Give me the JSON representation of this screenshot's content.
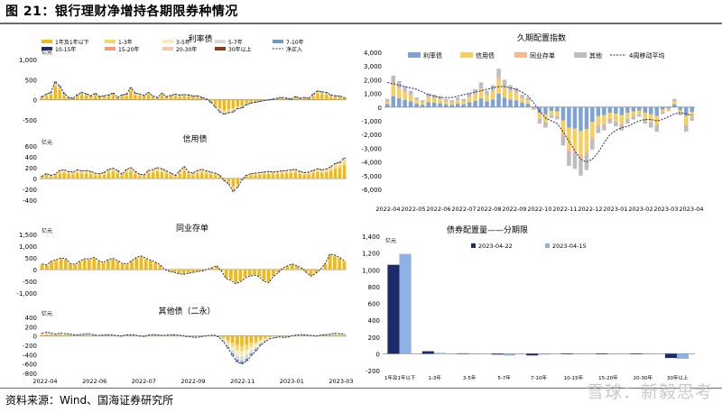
{
  "title": "图 21：银行理财净增持各期限券种情况",
  "source": "资料来源：Wind、国海证券研究所",
  "watermark": "雪球：新毅思考",
  "colors": {
    "b1": "#f2b817",
    "b2": "#f6d66a",
    "b3": "#fbeabb",
    "b4": "#d9d9d9",
    "b5": "#6f97c9",
    "b6": "#1d2b6b",
    "b7": "#f29b7a",
    "b8": "#f7c6a6",
    "b9": "#8c3a16",
    "net": "#1d2b6b",
    "rate": "#7ea2d6",
    "credit": "#f6cf5c",
    "ncd": "#f5b98e",
    "other": "#bdbdbd",
    "ma": "#1d2b6b",
    "d1": "#1d2b6b",
    "d2": "#8fb1e3"
  },
  "chart_data": [
    {
      "type": "bar",
      "title": "利率债",
      "unit": "亿元",
      "ylim": [
        -500,
        1000
      ],
      "yticks": [
        "1,000",
        "500",
        "0",
        "-500"
      ],
      "xticks": [
        "2022-04",
        "2022-06",
        "2022-07",
        "2022-09",
        "2022-11",
        "2023-01",
        "2023-03"
      ],
      "legend": [
        "1年及1年以下",
        "1-3年",
        "3-5年",
        "5-7年",
        "7-10年",
        "10-15年",
        "15-20年",
        "20-30年",
        "30年以上",
        "净买入"
      ],
      "net_approx": [
        80,
        140,
        180,
        450,
        340,
        160,
        60,
        40,
        130,
        180,
        150,
        100,
        160,
        80,
        100,
        120,
        170,
        60,
        120,
        140,
        300,
        170,
        140,
        110,
        180,
        90,
        60,
        160,
        80,
        110,
        140,
        120,
        130,
        120,
        90,
        100,
        60,
        20,
        -60,
        -180,
        -300,
        -360,
        -320,
        -300,
        -220,
        -200,
        -120,
        -80,
        -60,
        -40,
        -20,
        0,
        20,
        40,
        60,
        40,
        20,
        80,
        40,
        60,
        40,
        140,
        220,
        200,
        180,
        120,
        100,
        90,
        60
      ]
    },
    {
      "type": "bar",
      "title": "信用债",
      "unit": "亿元",
      "ylim": [
        -400,
        600
      ],
      "yticks": [
        "600",
        "400",
        "200",
        "0",
        "-200",
        "-400"
      ],
      "net_approx": [
        40,
        90,
        60,
        80,
        150,
        160,
        130,
        120,
        160,
        140,
        150,
        130,
        100,
        90,
        110,
        170,
        190,
        150,
        80,
        170,
        200,
        130,
        80,
        70,
        150,
        170,
        200,
        180,
        140,
        100,
        60,
        140,
        220,
        120,
        100,
        150,
        170,
        140,
        120,
        100,
        60,
        -40,
        -100,
        -240,
        -160,
        -20,
        60,
        90,
        100,
        110,
        120,
        130,
        120,
        130,
        140,
        150,
        160,
        170,
        130,
        110,
        120,
        150,
        180,
        160,
        180,
        220,
        280,
        300,
        380
      ]
    },
    {
      "type": "bar",
      "title": "同业存单",
      "unit": "亿元",
      "ylim": [
        -1000,
        1500
      ],
      "yticks": [
        "1,500",
        "1,000",
        "500",
        "0",
        "-500",
        "-1,000"
      ],
      "net_approx": [
        240,
        200,
        360,
        420,
        500,
        460,
        260,
        220,
        360,
        460,
        450,
        520,
        380,
        300,
        420,
        480,
        380,
        260,
        240,
        380,
        520,
        580,
        480,
        400,
        320,
        200,
        0,
        -80,
        -120,
        -180,
        -200,
        -160,
        -120,
        -80,
        -60,
        20,
        80,
        160,
        -60,
        -380,
        -460,
        -600,
        -520,
        -360,
        -280,
        -240,
        -300,
        -500,
        -560,
        -300,
        -140,
        60,
        160,
        240,
        160,
        60,
        -120,
        -280,
        -160,
        20,
        260,
        660,
        620,
        520,
        380
      ]
    },
    {
      "type": "bar",
      "title": "其他债（二永）",
      "unit": "亿元",
      "ylim": [
        -800,
        400
      ],
      "yticks": [
        "400",
        "200",
        "0",
        "-200",
        "-400",
        "-600",
        "-800"
      ],
      "net_approx": [
        60,
        80,
        60,
        40,
        60,
        50,
        40,
        20,
        30,
        40,
        50,
        30,
        10,
        20,
        30,
        20,
        10,
        0,
        20,
        30,
        20,
        0,
        -10,
        20,
        30,
        20,
        10,
        20,
        30,
        20,
        10,
        -10,
        -20,
        -30,
        -20,
        0,
        10,
        20,
        -20,
        -120,
        -260,
        -420,
        -560,
        -600,
        -540,
        -420,
        -320,
        -200,
        -120,
        -60,
        -40,
        -20,
        -30,
        -20,
        10,
        20,
        30,
        20,
        10,
        0,
        20,
        30,
        40,
        60,
        50,
        40
      ]
    },
    {
      "type": "bar",
      "title": "久期配置指数",
      "ylim": [
        -6000,
        4000
      ],
      "yticks": [
        "4,000",
        "3,000",
        "2,000",
        "1,000",
        "0",
        "-1,000",
        "-2,000",
        "-3,000",
        "-4,000",
        "-5,000",
        "-6,000"
      ],
      "xticks": [
        "2022-04",
        "2022-05",
        "2022-06",
        "2022-07",
        "2022-08",
        "2022-09",
        "2022-10",
        "2022-11",
        "2022-12",
        "2023-01",
        "2023-02",
        "2023-03",
        "2023-04"
      ],
      "legend": [
        "利率债",
        "信用债",
        "同业存单",
        "其他",
        "4周移动平均"
      ],
      "total_approx": [
        600,
        2300,
        1900,
        1500,
        1200,
        700,
        500,
        1000,
        900,
        800,
        600,
        500,
        700,
        600,
        1000,
        1300,
        1800,
        1200,
        1600,
        2800,
        2000,
        1600,
        1400,
        900,
        700,
        -200,
        -1200,
        -1500,
        -800,
        -900,
        -2800,
        -4300,
        -4500,
        -5000,
        -4600,
        -3100,
        -1900,
        -1700,
        -1200,
        -1400,
        -1700,
        -1200,
        -900,
        -700,
        -1200,
        -1500,
        -1800,
        -500,
        -300,
        600,
        -600,
        -1800,
        -1000
      ],
      "ma4_approx": [
        1800,
        1700,
        1600,
        1500,
        1400,
        1300,
        1100,
        900,
        800,
        700,
        700,
        700,
        800,
        900,
        1000,
        1100,
        1200,
        1300,
        1400,
        1500,
        1500,
        1400,
        1300,
        1100,
        800,
        300,
        -300,
        -800,
        -1000,
        -1200,
        -1800,
        -2500,
        -3200,
        -3800,
        -4000,
        -3800,
        -3300,
        -2600,
        -2000,
        -1700,
        -1500,
        -1400,
        -1200,
        -1000,
        -900,
        -900,
        -1000,
        -900,
        -700,
        -500,
        -400,
        -500,
        -600
      ]
    },
    {
      "type": "bar",
      "title": "债券配置量——分期限",
      "unit": "亿元",
      "ylim": [
        -200,
        1400
      ],
      "yticks": [
        "1,400",
        "1,200",
        "1,000",
        "800",
        "600",
        "400",
        "200",
        "0",
        "-200"
      ],
      "categories": [
        "1年及1年以下",
        "1-3年",
        "3-5年",
        "5-7年",
        "7-10年",
        "10-15年",
        "15-20年",
        "20-30年",
        "30年以上"
      ],
      "series": [
        {
          "name": "2023-04-22",
          "values": [
            1060,
            30,
            5,
            -10,
            -20,
            0,
            0,
            -5,
            -50
          ]
        },
        {
          "name": "2023-04-15",
          "values": [
            1190,
            10,
            0,
            -20,
            -10,
            0,
            -5,
            -5,
            -60
          ]
        }
      ]
    }
  ]
}
